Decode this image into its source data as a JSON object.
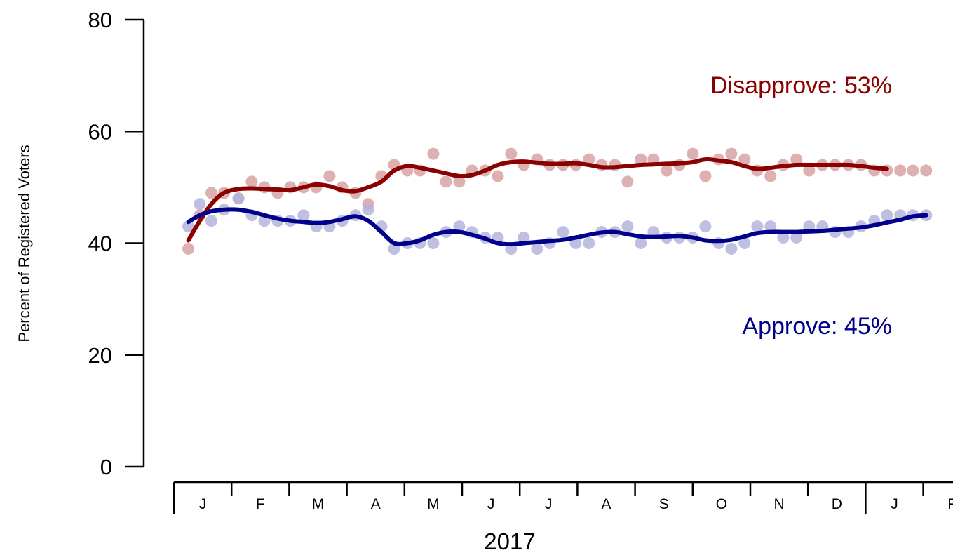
{
  "chart_data": {
    "type": "scatter",
    "ylabel": "Percent of Registered Voters",
    "ylim": [
      0,
      80
    ],
    "yticks": [
      0,
      20,
      40,
      60,
      80
    ],
    "year_label": "2017",
    "months": [
      "J",
      "F",
      "M",
      "A",
      "M",
      "J",
      "J",
      "A",
      "S",
      "O",
      "N",
      "D",
      "J",
      "F"
    ],
    "series": [
      {
        "name": "Disapprove",
        "label": "Disapprove: 53%",
        "color": "#8b0000",
        "point_color": "#d7a3a3",
        "x": [
          0.25,
          0.45,
          0.65,
          0.87,
          1.12,
          1.35,
          1.57,
          1.8,
          2.02,
          2.25,
          2.47,
          2.7,
          2.92,
          3.15,
          3.37,
          3.6,
          3.82,
          4.05,
          4.27,
          4.5,
          4.72,
          4.95,
          5.17,
          5.4,
          5.62,
          5.85,
          6.07,
          6.3,
          6.52,
          6.75,
          6.97,
          7.2,
          7.42,
          7.65,
          7.87,
          8.1,
          8.32,
          8.55,
          8.77,
          9.0,
          9.22,
          9.45,
          9.67,
          9.9,
          10.12,
          10.35,
          10.57,
          10.8,
          11.02,
          11.25,
          11.47,
          11.7,
          11.92,
          12.15,
          12.37,
          12.6,
          12.82,
          13.05
        ],
        "y": [
          39,
          45,
          49,
          49,
          48,
          51,
          50,
          49,
          50,
          50,
          50,
          52,
          50,
          49,
          47,
          52,
          54,
          53,
          53,
          56,
          51,
          51,
          53,
          53,
          52,
          56,
          54,
          55,
          54,
          54,
          54,
          55,
          54,
          54,
          51,
          55,
          55,
          53,
          54,
          56,
          52,
          55,
          56,
          55,
          53,
          52,
          54,
          55,
          53,
          54,
          54,
          54,
          54,
          53,
          53,
          53,
          53,
          53
        ],
        "trend": [
          40.5,
          44,
          47,
          49,
          49.7,
          49.8,
          49.7,
          49.6,
          49.5,
          50,
          50.5,
          50.2,
          49.5,
          49.3,
          50,
          51,
          53,
          53.8,
          53.5,
          53,
          52.5,
          52,
          52.2,
          53,
          54,
          54.5,
          54.6,
          54.4,
          54.2,
          54.2,
          54.3,
          54,
          53.6,
          53.6,
          53.8,
          54,
          54.1,
          54.2,
          54.3,
          54.5,
          55,
          54.8,
          54.5,
          53.8,
          53.3,
          53.5,
          53.8,
          54,
          54,
          54,
          54,
          54,
          53.8,
          53.5,
          53.3,
          53
        ]
      },
      {
        "name": "Approve",
        "label": "Approve: 45%",
        "color": "#00008b",
        "point_color": "#b4b4dc",
        "x": [
          0.25,
          0.45,
          0.65,
          0.87,
          1.12,
          1.35,
          1.57,
          1.8,
          2.02,
          2.25,
          2.47,
          2.7,
          2.92,
          3.15,
          3.37,
          3.6,
          3.82,
          4.05,
          4.27,
          4.5,
          4.72,
          4.95,
          5.17,
          5.4,
          5.62,
          5.85,
          6.07,
          6.3,
          6.52,
          6.75,
          6.97,
          7.2,
          7.42,
          7.65,
          7.87,
          8.1,
          8.32,
          8.55,
          8.77,
          9.0,
          9.22,
          9.45,
          9.67,
          9.9,
          10.12,
          10.35,
          10.57,
          10.8,
          11.02,
          11.25,
          11.47,
          11.7,
          11.92,
          12.15,
          12.37,
          12.6,
          12.82,
          13.05
        ],
        "y": [
          43,
          47,
          44,
          46,
          48,
          45,
          44,
          44,
          44,
          45,
          43,
          43,
          44,
          45,
          46,
          43,
          39,
          40,
          40,
          40,
          42,
          43,
          42,
          41,
          41,
          39,
          41,
          39,
          40,
          42,
          40,
          40,
          42,
          42,
          43,
          40,
          42,
          41,
          41,
          41,
          43,
          40,
          39,
          40,
          43,
          43,
          41,
          41,
          43,
          43,
          42,
          42,
          43,
          44,
          45,
          45,
          45,
          45
        ],
        "trend": [
          43.8,
          45,
          45.7,
          46,
          46,
          45.6,
          45,
          44.4,
          44,
          43.8,
          43.6,
          43.8,
          44.3,
          44.8,
          44,
          42,
          40,
          40,
          40.5,
          41.5,
          42,
          42,
          41.5,
          40.8,
          40,
          39.8,
          40,
          40.2,
          40.4,
          40.6,
          41,
          41.5,
          41.9,
          42,
          41.6,
          41.2,
          41.1,
          41.2,
          41.3,
          41,
          40.5,
          40.4,
          40.6,
          41.2,
          41.8,
          42,
          42,
          42,
          42.1,
          42.2,
          42.4,
          42.6,
          42.8,
          43.2,
          43.7,
          44.2,
          44.8,
          45
        ]
      }
    ]
  }
}
